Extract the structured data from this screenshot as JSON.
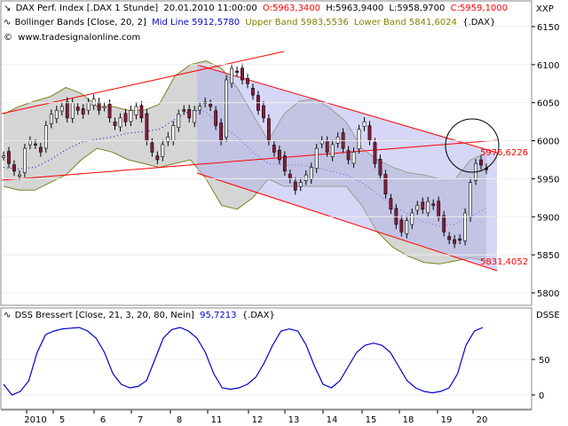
{
  "header": {
    "line1": {
      "name": "DAX Perf. Index [.DAX  1 Stunde]",
      "datetime": "20.01.2010 11:00:00",
      "ohlc_open": "O:5963,3400",
      "ohlc_high": "H:5963,9400",
      "ohlc_low": "L:5958,9700",
      "ohlc_close": "C:5959,1000"
    },
    "line2": {
      "name": "Bollinger Bands [Close, 20, 2]",
      "mid": "Mid Line 5912,5780",
      "upper": "Upper Band 5983,5536",
      "lower": "Lower Band 5841,6024",
      "tail": "{.DAX}"
    },
    "line3": "www.tradesignalonline.com"
  },
  "right_axis": {
    "top_label": "XXP",
    "price_ticks": [
      "6150",
      "6100",
      "6050",
      "6000",
      "5950",
      "5900",
      "5850",
      "5800"
    ],
    "osc_label": "DSSE",
    "osc_ticks": [
      "50",
      "0"
    ]
  },
  "annotations": {
    "upper_value": "5976,6226",
    "lower_value": "5831,4052"
  },
  "lower_header": {
    "name": "DSS Bressert [Close, 21, 3, 20, 80, Nein]",
    "value": "95,7213",
    "tail": "{.DAX}"
  },
  "x_axis": {
    "labels": [
      "2010",
      "5",
      "6",
      "7",
      "8",
      "11",
      "12",
      "13",
      "14",
      "15",
      "18",
      "19",
      "20"
    ]
  },
  "colors": {
    "up_candle": "#ffffff",
    "down_candle": "#8b1c3c",
    "band_fill": "#d0d0d0",
    "band_line": "#808020",
    "channel": "#ff0000",
    "channel_fill": "#b4b4f0",
    "mid_line": "#0000cc",
    "dss_line": "#0000cc",
    "ohlc_red": "#ff0000",
    "band_text_olive": "#808000"
  },
  "chart_data": [
    {
      "type": "candlestick",
      "series": [
        {
          "name": "Mid Line",
          "values": [
            5965,
            5963,
            5965,
            5975,
            5988,
            5998,
            6002,
            6005,
            6010,
            6012,
            6015,
            6028,
            6040,
            6038,
            6020,
            6005,
            5985,
            5970,
            5968,
            5968,
            5965,
            5960,
            5955,
            5945,
            5930,
            5915,
            5903,
            5893,
            5888,
            5890,
            5900,
            5912
          ]
        },
        {
          "name": "Upper Band",
          "values": [
            6035,
            6045,
            6052,
            6058,
            6070,
            6062,
            6045,
            6045,
            6040,
            6040,
            6048,
            6085,
            6100,
            6105,
            6095,
            6070,
            6035,
            6000,
            6035,
            6052,
            6055,
            6042,
            6025,
            5990,
            5975,
            5965,
            5958,
            5955,
            5950,
            5950,
            5975,
            5984
          ]
        },
        {
          "name": "Lower Band",
          "values": [
            5940,
            5935,
            5935,
            5945,
            5955,
            5975,
            5990,
            5985,
            5975,
            5970,
            5965,
            5970,
            5975,
            5950,
            5915,
            5910,
            5925,
            5950,
            5940,
            5940,
            5940,
            5940,
            5940,
            5915,
            5880,
            5860,
            5848,
            5840,
            5838,
            5842,
            5846,
            5842
          ]
        }
      ],
      "ylim": [
        5780,
        6160
      ],
      "yticks": [
        6150,
        6100,
        6050,
        6000,
        5950,
        5900,
        5850,
        5800
      ],
      "grid": true,
      "annotations": [
        {
          "text": "5976,6226"
        },
        {
          "text": "5831,4052"
        }
      ]
    },
    {
      "type": "line",
      "series": [
        {
          "name": "DSS Bressert",
          "values": [
            15,
            0,
            5,
            20,
            60,
            85,
            90,
            93,
            94,
            95,
            90,
            80,
            60,
            30,
            15,
            10,
            12,
            20,
            50,
            80,
            92,
            95,
            90,
            80,
            60,
            30,
            10,
            8,
            10,
            15,
            25,
            45,
            70,
            90,
            93,
            90,
            70,
            40,
            15,
            10,
            20,
            40,
            60,
            70,
            73,
            70,
            60,
            40,
            20,
            10,
            5,
            3,
            5,
            10,
            30,
            70,
            90,
            95
          ]
        }
      ],
      "ylim": [
        -10,
        110
      ],
      "yticks": [
        50,
        0
      ]
    }
  ]
}
